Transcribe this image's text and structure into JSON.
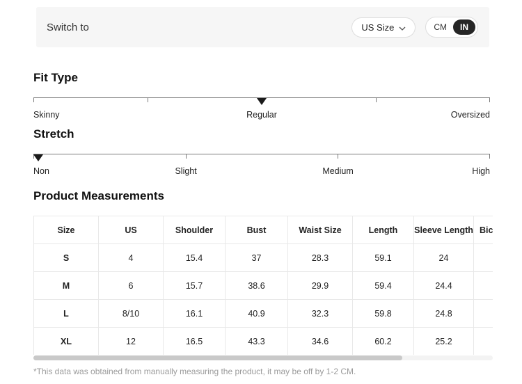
{
  "topbar": {
    "switch_label": "Switch to",
    "size_dropdown": {
      "label": "US Size"
    },
    "unit_toggle": {
      "cm_label": "CM",
      "in_label": "IN",
      "selected": "IN"
    }
  },
  "fit_type": {
    "heading": "Fit Type",
    "labels": {
      "left": "Skinny",
      "center": "Regular",
      "right": "Oversized"
    },
    "selected": "Regular",
    "marker_position_pct": 50,
    "tick_positions_pct": [
      0,
      25,
      50,
      75,
      100
    ]
  },
  "stretch": {
    "heading": "Stretch",
    "labels": {
      "p0": "Non",
      "p33": "Slight",
      "p66": "Medium",
      "p100": "High"
    },
    "selected": "Non",
    "marker_position_pct": 1,
    "tick_positions_pct": [
      0,
      33.33,
      66.67,
      100
    ]
  },
  "measurements": {
    "heading": "Product Measurements",
    "columns": [
      "Size",
      "US",
      "Shoulder",
      "Bust",
      "Waist Size",
      "Length",
      "Sleeve Length",
      "Bic"
    ],
    "rows": [
      [
        "S",
        "4",
        "15.4",
        "37",
        "28.3",
        "59.1",
        "24",
        ""
      ],
      [
        "M",
        "6",
        "15.7",
        "38.6",
        "29.9",
        "59.4",
        "24.4",
        ""
      ],
      [
        "L",
        "8/10",
        "16.1",
        "40.9",
        "32.3",
        "59.8",
        "24.8",
        ""
      ],
      [
        "XL",
        "12",
        "16.5",
        "43.3",
        "34.6",
        "60.2",
        "25.2",
        ""
      ]
    ]
  },
  "footnote": "*This data was obtained from manually measuring the product, it may be off by 1-2 CM.",
  "colors": {
    "topbar_bg": "#f6f6f6",
    "pill_border": "#dddddd",
    "toggle_selected_bg": "#262626",
    "slider_line": "#7a7a7a",
    "marker": "#1a1a1a",
    "table_border": "#e8e8e8",
    "scroll_thumb": "#c9c9c9",
    "scroll_track": "#f3f3f3",
    "footnote_text": "#9b9b9b"
  }
}
